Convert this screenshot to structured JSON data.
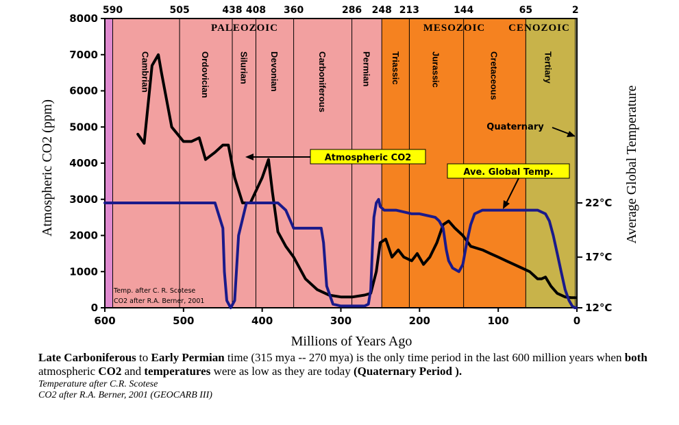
{
  "chart_data": {
    "type": "line",
    "xlabel": "Millions of Years Ago",
    "ylabel_left": "Atmospheric CO2 (ppm)",
    "ylabel_right": "Average Global Temperature",
    "xlim": [
      600,
      0
    ],
    "ylim": [
      0,
      8000
    ],
    "x_ticks": [
      600,
      500,
      400,
      300,
      200,
      100,
      0
    ],
    "y_ticks": [
      0,
      1000,
      2000,
      3000,
      4000,
      5000,
      6000,
      7000,
      8000
    ],
    "right_ticks": [
      {
        "label": "22°C",
        "co2_level": 2900
      },
      {
        "label": "17°C",
        "co2_level": 1400
      },
      {
        "label": "12°C",
        "co2_level": 0
      }
    ],
    "boundaries": [
      {
        "label": "590",
        "x": 590
      },
      {
        "label": "505",
        "x": 505
      },
      {
        "label": "438",
        "x": 438
      },
      {
        "label": "408",
        "x": 408
      },
      {
        "label": "360",
        "x": 360
      },
      {
        "label": "286",
        "x": 286
      },
      {
        "label": "248",
        "x": 248
      },
      {
        "label": "213",
        "x": 213
      },
      {
        "label": "144",
        "x": 144
      },
      {
        "label": "65",
        "x": 65
      },
      {
        "label": "2",
        "x": 2
      }
    ],
    "eras": [
      {
        "name": "PALEOZOIC",
        "from": 590,
        "to": 248,
        "color": "#f2a0a0"
      },
      {
        "name": "MESOZOIC",
        "from": 248,
        "to": 65,
        "color": "#f58220"
      },
      {
        "name": "CENOZOIC",
        "from": 65,
        "to": 2,
        "color": "#c8b34a"
      }
    ],
    "precambrian_color": "#e08ad0",
    "periods": [
      {
        "name": "Cambrian",
        "x": 548
      },
      {
        "name": "Ordovician",
        "x": 472
      },
      {
        "name": "Silurian",
        "x": 423
      },
      {
        "name": "Devonian",
        "x": 384
      },
      {
        "name": "Carboniferous",
        "x": 323
      },
      {
        "name": "Permian",
        "x": 267
      },
      {
        "name": "Triassic",
        "x": 230
      },
      {
        "name": "Jurassic",
        "x": 179
      },
      {
        "name": "Cretaceous",
        "x": 105
      },
      {
        "name": "Tertiary",
        "x": 36
      },
      {
        "name": "Quaternary",
        "x": 80
      }
    ],
    "series": [
      {
        "name": "Atmospheric CO2",
        "x": [
          558,
          550,
          540,
          532,
          528,
          515,
          500,
          490,
          480,
          472,
          460,
          450,
          443,
          435,
          425,
          415,
          400,
          392,
          387,
          380,
          370,
          360,
          345,
          330,
          315,
          300,
          285,
          270,
          262,
          255,
          250,
          243,
          235,
          227,
          220,
          210,
          203,
          195,
          187,
          178,
          170,
          163,
          155,
          145,
          135,
          120,
          110,
          100,
          90,
          80,
          70,
          60,
          55,
          50,
          45,
          40,
          33,
          25,
          15,
          7,
          2
        ],
        "y": [
          4800,
          4550,
          6700,
          7000,
          6500,
          5000,
          4600,
          4600,
          4700,
          4100,
          4300,
          4500,
          4500,
          3600,
          2900,
          2900,
          3600,
          4100,
          3200,
          2100,
          1700,
          1400,
          800,
          500,
          350,
          300,
          300,
          350,
          400,
          1000,
          1800,
          1900,
          1400,
          1600,
          1400,
          1300,
          1500,
          1200,
          1400,
          1800,
          2300,
          2400,
          2200,
          2000,
          1700,
          1600,
          1500,
          1400,
          1300,
          1200,
          1100,
          1000,
          900,
          800,
          800,
          850,
          600,
          400,
          300,
          280,
          280
        ]
      },
      {
        "name": "Ave. Global Temp.",
        "x": [
          600,
          590,
          560,
          540,
          520,
          500,
          480,
          460,
          450,
          448,
          445,
          440,
          435,
          430,
          420,
          400,
          380,
          370,
          360,
          340,
          325,
          322,
          320,
          318,
          310,
          300,
          290,
          280,
          270,
          265,
          262,
          260,
          258,
          255,
          252,
          250,
          245,
          240,
          230,
          220,
          210,
          200,
          190,
          180,
          175,
          170,
          166,
          163,
          158,
          150,
          145,
          140,
          135,
          130,
          120,
          110,
          100,
          90,
          80,
          70,
          60,
          50,
          40,
          35,
          30,
          25,
          20,
          15,
          10,
          6,
          3,
          1
        ],
        "y": [
          2900,
          2900,
          2900,
          2900,
          2900,
          2900,
          2900,
          2900,
          2200,
          1000,
          200,
          0,
          200,
          2000,
          2900,
          2900,
          2900,
          2700,
          2200,
          2200,
          2200,
          1800,
          1200,
          600,
          100,
          50,
          50,
          50,
          50,
          100,
          500,
          1600,
          2500,
          2900,
          3000,
          2800,
          2700,
          2700,
          2700,
          2650,
          2600,
          2600,
          2550,
          2500,
          2400,
          2200,
          1600,
          1300,
          1100,
          1000,
          1200,
          1800,
          2300,
          2600,
          2700,
          2700,
          2700,
          2700,
          2700,
          2700,
          2700,
          2700,
          2600,
          2400,
          2000,
          1500,
          1000,
          500,
          200,
          50,
          0,
          0
        ]
      }
    ],
    "annotations": [
      {
        "text": "Atmospheric CO2",
        "color": "#ffff00"
      },
      {
        "text": "Ave. Global Temp.",
        "color": "#ffff00"
      },
      {
        "text": "Quaternary"
      }
    ],
    "credit_lines": [
      "Temp. after C. R. Scotese",
      "CO2 after R.A. Berner, 2001"
    ],
    "colors": {
      "co2_line": "#000000",
      "temp_line": "#1a1a8a",
      "callout_bg": "#ffff00"
    }
  },
  "caption": {
    "p1_bold": "Late Carboniferous",
    "p2": " to ",
    "p3_bold": "Early Permian",
    "p4": " time (315 mya -- 270 mya) is the only time period in the last 600 million years when ",
    "p5_bold": "both",
    "p6": " atmospheric ",
    "p7_bold": "CO2",
    "p8": " and ",
    "p9_bold": "temperatures",
    "p10": " were as low as they are today ",
    "p11_bold": "(Quaternary Period ).",
    "credit1": "Temperature after C.R. Scotese",
    "credit2": "CO2 after R.A. Berner, 2001 (GEOCARB III)"
  }
}
